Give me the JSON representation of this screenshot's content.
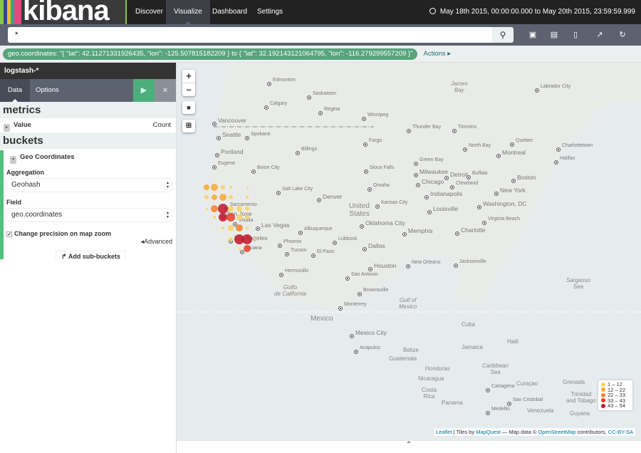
{
  "nav": {
    "logo": "kibana",
    "logo_colors": [
      "#8dc63f",
      "#2d4b8c",
      "#f4b829",
      "#27a9a0",
      "#e6477f"
    ],
    "links": [
      "Discover",
      "Visualize",
      "Dashboard",
      "Settings"
    ],
    "active": "Visualize",
    "time_range": "May 18th 2015, 00:00:00.000 to May 20th 2015, 23:59:59.999"
  },
  "query": {
    "value": "*"
  },
  "toolbar": {
    "icons": [
      "new-icon",
      "save-icon",
      "open-icon",
      "share-icon",
      "refresh-icon"
    ]
  },
  "filter": {
    "text": "geo.coordinates: \"{ \"lat\": 42.11271331926435, \"lon\": -125.507815182209 } to { \"lat\": 32.192143121064795, \"lon\": -116.279299557209 }\"",
    "actions": "Actions"
  },
  "sidebar": {
    "index": "logstash-*",
    "tabs": [
      "Data",
      "Options"
    ],
    "metrics_title": "metrics",
    "metric": {
      "label": "Value",
      "type": "Count"
    },
    "buckets_title": "buckets",
    "bucket": {
      "label": "Geo Coordinates",
      "aggregation_label": "Aggregation",
      "aggregation": "Geohash",
      "field_label": "Field",
      "field": "geo.coordinates",
      "precision_label": "Change precision on map zoom",
      "precision_checked": true,
      "advanced": "Advanced"
    },
    "add_sub": "Add sub-buckets"
  },
  "map": {
    "legend": [
      {
        "label": "1 – 12",
        "color": "#fdd25b"
      },
      {
        "label": "12 – 22",
        "color": "#f9a933"
      },
      {
        "label": "22 – 33",
        "color": "#f5802c"
      },
      {
        "label": "33 – 43",
        "color": "#e8402a"
      },
      {
        "label": "43 – 54",
        "color": "#c1172c"
      }
    ],
    "attribution": {
      "leaflet": "Leaflet",
      "tiles": " | Tiles by ",
      "mapquest": "MapQuest",
      "mapdata": " — Map data © ",
      "osm": "OpenStreetMap",
      "contrib": " contributors, ",
      "license": "CC-BY-SA"
    },
    "cities": [
      "Edmonton",
      "Saskatoon",
      "Calgary",
      "Regina",
      "Winnipeg",
      "Vancouver",
      "Seattle",
      "Spokane",
      "Portland",
      "Eugene",
      "Boise City",
      "Billings",
      "Fargo",
      "Sioux Falls",
      "Salt Lake City",
      "Denver",
      "Omaha",
      "Kansas City",
      "Thunder Bay",
      "Timmins",
      "Labrador City",
      "Quebec",
      "North Bay",
      "Montreal",
      "Charlottetown",
      "Halifax",
      "Green Bay",
      "Milwaukee",
      "Chicago",
      "Detroit",
      "Buffalo",
      "Cleveland",
      "Indianapolis",
      "Boston",
      "New York",
      "Washington, DC",
      "Louisville",
      "Memphis",
      "Charlotte",
      "Virginia Beach",
      "Las Vegas",
      "Phoenix",
      "Tucson",
      "El Paso",
      "Albuquerque",
      "Lubbock",
      "Oklahoma City",
      "Dallas",
      "Houston",
      "New Orleans",
      "Jacksonville",
      "San Antonio",
      "Brownsville",
      "Monterrey",
      "Hermosillo",
      "Mexico City",
      "Acapulco",
      "Sacramento",
      "San Jose",
      "Visalia",
      "Los Angeles",
      "Tijuana",
      "Cartagena",
      "Medellin",
      "San Cristobal"
    ],
    "regions": [
      "United\nStates",
      "Mexico",
      "Cuba",
      "Belize",
      "Guatemala",
      "Honduras",
      "Nicaragua",
      "Costa\nRica",
      "Panama",
      "Venezuela",
      "Guyana",
      "Trinidad\nand Tobago",
      "Curaçao",
      "Grenada",
      "Haiti",
      "Jamaica"
    ],
    "seas": [
      "James\nBay",
      "Gulf of\nMexico",
      "Golfo\nde California",
      "Sargasso\nSea",
      "Caribbean\nSea"
    ]
  }
}
